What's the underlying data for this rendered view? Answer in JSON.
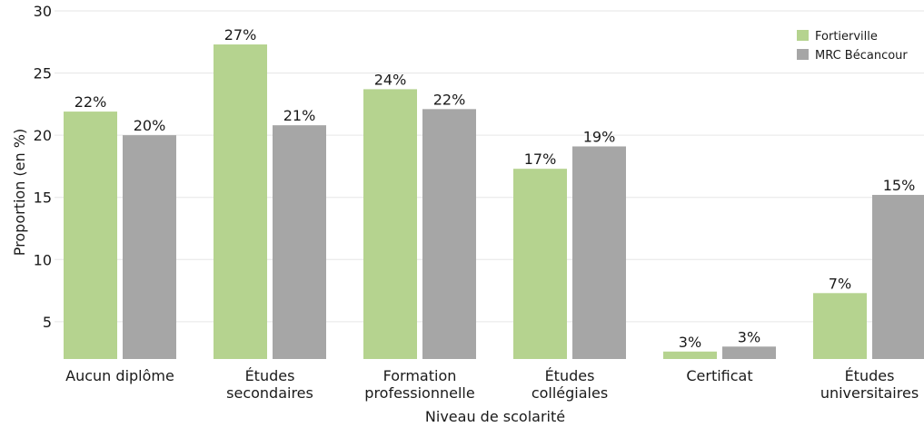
{
  "chart_data": {
    "type": "bar",
    "title": "",
    "xlabel": "Niveau de scolarité",
    "ylabel": "Proportion (en %)",
    "ylim": [
      2,
      30
    ],
    "yticks": [
      5,
      10,
      15,
      20,
      25,
      30
    ],
    "grid": true,
    "legend_position": "top-right",
    "categories": [
      [
        "Aucun diplôme"
      ],
      [
        "Études",
        "secondaires"
      ],
      [
        "Formation",
        "professionnelle"
      ],
      [
        "Études",
        "collégiales"
      ],
      [
        "Certificat"
      ],
      [
        "Études",
        "universitaires"
      ]
    ],
    "series": [
      {
        "name": "Fortierville",
        "color": "#b5d38f",
        "values": [
          21.9,
          27.3,
          23.7,
          17.3,
          2.6,
          7.3
        ],
        "labels": [
          "22%",
          "27%",
          "24%",
          "17%",
          "3%",
          "7%"
        ]
      },
      {
        "name": "MRC Bécancour",
        "color": "#a6a6a6",
        "values": [
          20.0,
          20.8,
          22.1,
          19.1,
          3.0,
          15.2
        ],
        "labels": [
          "20%",
          "21%",
          "22%",
          "19%",
          "3%",
          "15%"
        ]
      }
    ]
  }
}
